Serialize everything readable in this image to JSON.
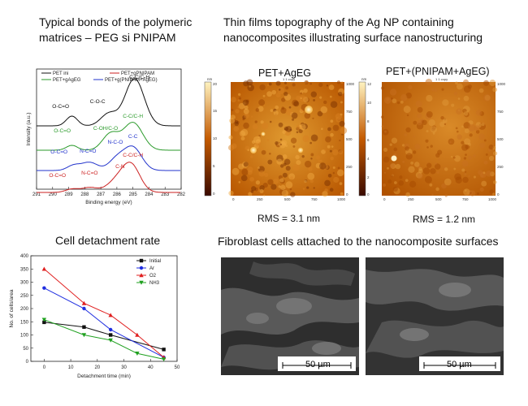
{
  "captions": {
    "xps": [
      "Typical bonds of the polymeric",
      "matrices – PEG si PNIPAM"
    ],
    "afm": [
      "Thin films topography of the Ag NP containing",
      "nanocomposites illustrating surface nanostructuring"
    ],
    "cell": "Cell detachment rate",
    "sem": "Fibroblast cells attached to the nanocomposite  surfaces"
  },
  "afm": {
    "left_title": "PET+AgEG",
    "right_title": "PET+(PNIPAM+AgEG)",
    "left_rms": "RMS = 3.1 nm",
    "right_rms": "RMS = 1.2 nm",
    "copy_label": "1 1 copy",
    "nm_unit": "nm",
    "axis_ticks": [
      "0",
      "250",
      "500",
      "750",
      "1000"
    ],
    "left_scale": [
      "20",
      "15",
      "10",
      "5",
      "0"
    ],
    "right_scale": [
      "12",
      "10",
      "8",
      "6",
      "4",
      "2",
      "0"
    ],
    "colors": {
      "dark": "#6b1a00",
      "mid": "#c45a00",
      "light": "#f2b040"
    }
  },
  "sem": {
    "left_scalebar": "50 µm",
    "right_scalebar": "50 µm"
  },
  "chart_data": [
    {
      "type": "line",
      "xlabel": "Binding energy (eV)",
      "ylabel": "Intensity (a.u.)",
      "x_ticks": [
        291,
        290,
        289,
        288,
        287,
        286,
        285,
        284,
        283,
        282
      ],
      "xlim": [
        291,
        282
      ],
      "legend": [
        "PET ini",
        "PET+gPNIPAM",
        "PET+gAgEG",
        "PET+g(PNIPAM+AgEG)"
      ],
      "series": [
        {
          "name": "PET ini",
          "color": "#111111",
          "labels": [
            "O-C=O",
            "C-O-C",
            "C-C/C-H"
          ]
        },
        {
          "name": "PET+gAgEG",
          "color": "#2a9a2a",
          "labels": [
            "O-C=O",
            "C-OH/C-O",
            "C-C/C-H"
          ]
        },
        {
          "name": "PET+g(PNIPAM+AgEG)",
          "color": "#2233cc",
          "labels": [
            "O-C=O",
            "N-C=O",
            "N-C-O",
            "C-C"
          ]
        },
        {
          "name": "PET+gPNIPAM",
          "color": "#cc2222",
          "labels": [
            "O-C=O",
            "N-C=O",
            "C-N",
            "C-C/C-H"
          ]
        }
      ]
    },
    {
      "type": "line",
      "xlabel": "Detachment time (min)",
      "ylabel": "No. of cells/area",
      "xlim": [
        -5,
        50
      ],
      "ylim": [
        0,
        400
      ],
      "x_ticks": [
        0,
        10,
        20,
        30,
        40,
        50
      ],
      "y_ticks": [
        0,
        50,
        100,
        150,
        200,
        250,
        300,
        350,
        400
      ],
      "series": [
        {
          "name": "Initial",
          "color": "#111111",
          "marker": "square",
          "x": [
            0,
            15,
            25,
            45
          ],
          "y": [
            148,
            130,
            100,
            45
          ]
        },
        {
          "name": "Ar",
          "color": "#1f2ee0",
          "marker": "circle",
          "x": [
            0,
            15,
            25,
            45
          ],
          "y": [
            278,
            200,
            120,
            15
          ]
        },
        {
          "name": "O2",
          "color": "#e01f1f",
          "marker": "triangle",
          "x": [
            0,
            15,
            25,
            35,
            45
          ],
          "y": [
            350,
            220,
            175,
            100,
            15
          ]
        },
        {
          "name": "NH3",
          "color": "#1fa01f",
          "marker": "triangle-down",
          "x": [
            0,
            15,
            25,
            35,
            45
          ],
          "y": [
            158,
            100,
            80,
            30,
            8
          ]
        }
      ]
    }
  ]
}
